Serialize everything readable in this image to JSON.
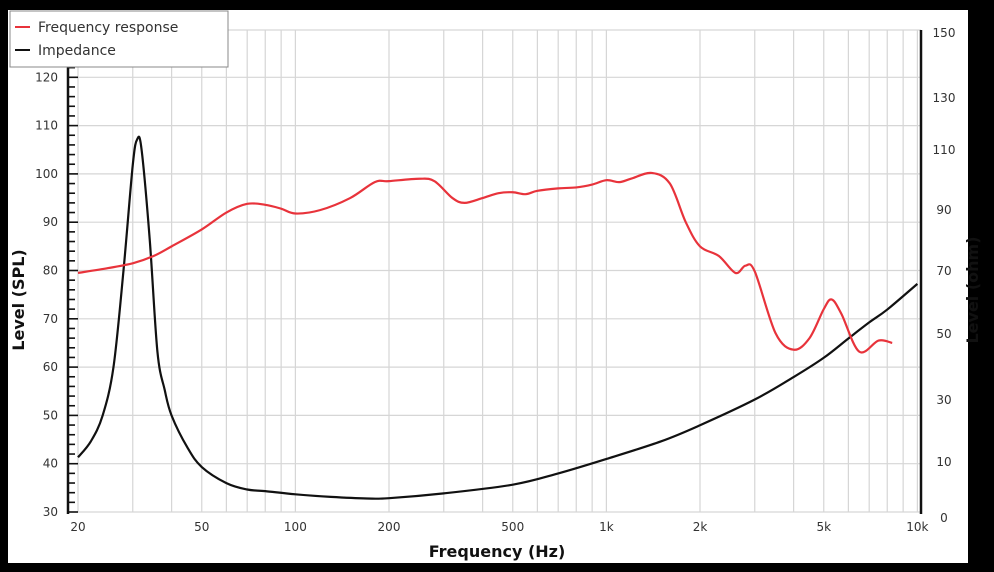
{
  "chart_data": {
    "type": "line",
    "title": "",
    "xlabel": "Frequency (Hz)",
    "ylabel": "Level (SPL)",
    "y2label": "Level (ohm)",
    "xscale": "log",
    "xlim": [
      20,
      10000
    ],
    "ylim": [
      30,
      120
    ],
    "y2lim": [
      0,
      150
    ],
    "grid": true,
    "legend_position": "top-left",
    "x_ticks": [
      {
        "value": 20,
        "label": "20"
      },
      {
        "value": 50,
        "label": "50"
      },
      {
        "value": 100,
        "label": "100"
      },
      {
        "value": 200,
        "label": "200"
      },
      {
        "value": 500,
        "label": "500"
      },
      {
        "value": 1000,
        "label": "1k"
      },
      {
        "value": 2000,
        "label": "2k"
      },
      {
        "value": 5000,
        "label": "5k"
      },
      {
        "value": 10000,
        "label": "10k"
      }
    ],
    "y_ticks": [
      30,
      40,
      50,
      60,
      70,
      80,
      90,
      100,
      110,
      120
    ],
    "y2_ticks": [
      0,
      10,
      30,
      50,
      70,
      90,
      110,
      130,
      150
    ],
    "series": [
      {
        "name": "Frequency response",
        "color": "#e8333b",
        "axis": "left",
        "x": [
          20,
          25,
          30,
          35,
          40,
          50,
          60,
          70,
          80,
          90,
          100,
          120,
          150,
          180,
          200,
          250,
          280,
          320,
          350,
          400,
          450,
          500,
          550,
          600,
          700,
          800,
          900,
          1000,
          1100,
          1200,
          1400,
          1600,
          1800,
          2000,
          2300,
          2600,
          2800,
          3000,
          3500,
          4000,
          4500,
          5000,
          5300,
          5700,
          6500,
          7500,
          8300
        ],
        "values": [
          79.5,
          80.5,
          81.5,
          83,
          85,
          88.5,
          92,
          93.8,
          93.6,
          92.8,
          91.8,
          92.5,
          95,
          98.3,
          98.5,
          99,
          98.5,
          95,
          94,
          95,
          96,
          96.2,
          95.8,
          96.5,
          97,
          97.2,
          97.8,
          98.7,
          98.3,
          99,
          100.2,
          98,
          90,
          85,
          83,
          79.5,
          81,
          79.8,
          67,
          63.6,
          66,
          72,
          74,
          71,
          63.2,
          65.5,
          65
        ]
      },
      {
        "name": "Impedance",
        "color": "#111111",
        "axis": "right",
        "x": [
          20,
          22,
          24,
          26,
          28,
          30,
          31,
          32,
          34,
          36,
          38,
          40,
          45,
          50,
          60,
          70,
          80,
          100,
          130,
          170,
          200,
          300,
          500,
          700,
          1000,
          1500,
          2000,
          3000,
          4000,
          5000,
          6000,
          7000,
          8000,
          10000
        ],
        "values": [
          17,
          22,
          30,
          45,
          75,
          108,
          116,
          113,
          85,
          50,
          38,
          30,
          20,
          14,
          9,
          7,
          6.5,
          5.5,
          4.7,
          4.2,
          4.3,
          5.8,
          8.5,
          12,
          16.5,
          22,
          27,
          35,
          42,
          48,
          54,
          59,
          63,
          71
        ]
      }
    ]
  },
  "legend": {
    "items": [
      {
        "label": "Frequency response",
        "color": "#e8333b"
      },
      {
        "label": "Impedance",
        "color": "#111111"
      }
    ]
  },
  "axes": {
    "x_title": "Frequency (Hz)",
    "y_title": "Level (SPL)",
    "y2_title": "Level (ohm)"
  }
}
